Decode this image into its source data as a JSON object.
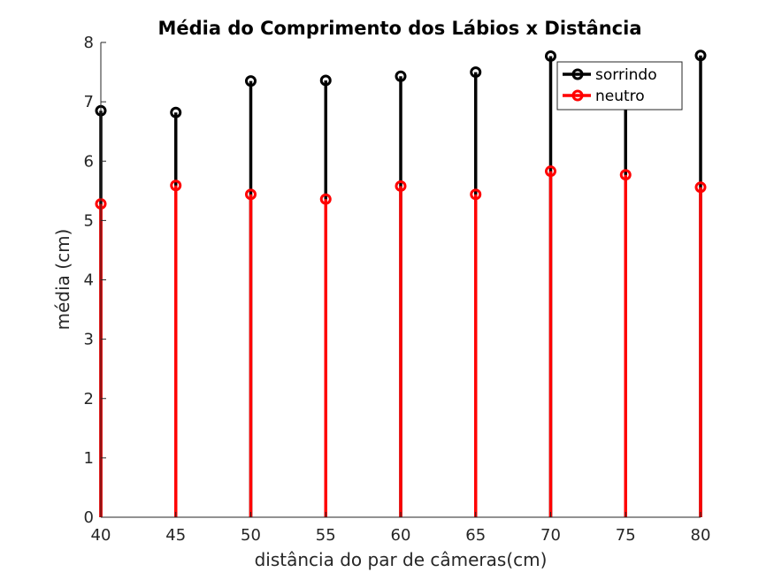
{
  "chart_data": {
    "type": "stem",
    "title": "Média do Comprimento dos Lábios x Distância",
    "xlabel": "distância do par de câmeras(cm)",
    "ylabel": "média (cm)",
    "xlim": [
      40,
      80
    ],
    "ylim": [
      0,
      8
    ],
    "xticks": [
      "40",
      "45",
      "50",
      "55",
      "60",
      "65",
      "70",
      "75",
      "80"
    ],
    "yticks": [
      "0",
      "1",
      "2",
      "3",
      "4",
      "5",
      "6",
      "7",
      "8"
    ],
    "x": [
      40,
      45,
      50,
      55,
      60,
      65,
      70,
      75,
      80
    ],
    "series": [
      {
        "name": "sorrindo",
        "color": "#000000",
        "marker": "circle",
        "values": [
          6.85,
          6.82,
          7.35,
          7.36,
          7.43,
          7.5,
          7.77,
          7.2,
          7.78
        ]
      },
      {
        "name": "neutro",
        "color": "#ff0000",
        "marker": "circle",
        "values": [
          5.28,
          5.59,
          5.44,
          5.36,
          5.58,
          5.44,
          5.83,
          5.77,
          5.56
        ]
      }
    ],
    "grid": false,
    "legend_position": "top-right"
  }
}
